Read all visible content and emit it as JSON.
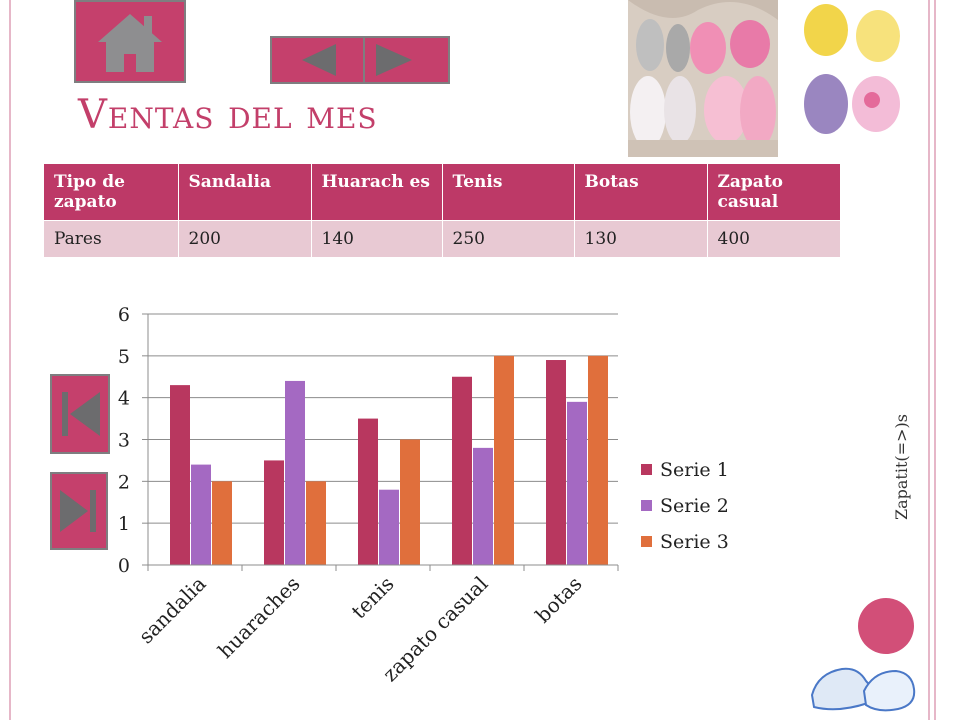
{
  "slide": {
    "title": "Ventas del mes",
    "side_label": "Zapatit(=>)s"
  },
  "table": {
    "headers": [
      "Tipo de zapato",
      "Sandalia",
      "Huarach es",
      "Tenis",
      "Botas",
      "Zapato casual"
    ],
    "row_label": "Pares",
    "values": [
      "200",
      "140",
      "250",
      "130",
      "400"
    ]
  },
  "colors": {
    "accent": "#bd3967",
    "series1": "#b8375f",
    "series2": "#a469c2",
    "series3": "#e06f3c"
  },
  "icons": [
    "home-icon",
    "arrow-left-icon",
    "arrow-right-icon",
    "first-slide-icon",
    "last-slide-icon"
  ],
  "chart_data": {
    "type": "bar",
    "categories": [
      "sandalia",
      "huaraches",
      "tenis",
      "zapato casual",
      "botas"
    ],
    "series": [
      {
        "name": "Serie 1",
        "values": [
          4.3,
          2.5,
          3.5,
          4.5,
          4.9
        ]
      },
      {
        "name": "Serie 2",
        "values": [
          2.4,
          4.4,
          1.8,
          2.8,
          3.9
        ]
      },
      {
        "name": "Serie 3",
        "values": [
          2,
          2,
          3,
          5,
          5
        ]
      }
    ],
    "yticks": [
      "0",
      "1",
      "2",
      "3",
      "4",
      "5",
      "6"
    ],
    "ylim": [
      0,
      6
    ],
    "grid": true,
    "legend": "right"
  }
}
